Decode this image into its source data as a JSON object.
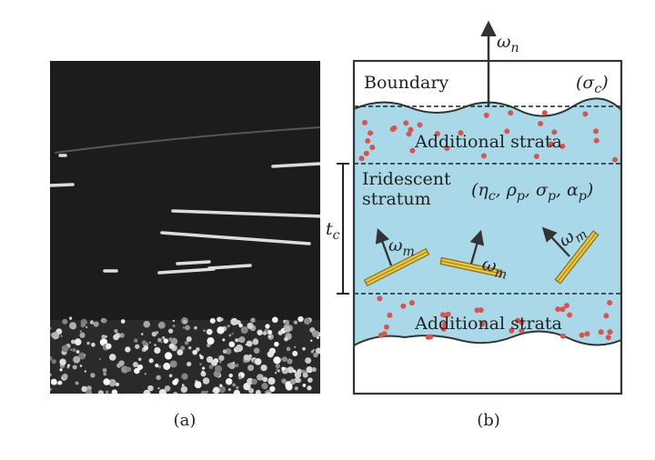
{
  "figure": {
    "panel_a": {
      "caption": "(a)"
    },
    "panel_b": {
      "caption": "(b)",
      "boundary": {
        "label": "Boundary",
        "param": [
          {
            "text": "("
          },
          {
            "text": "σ"
          },
          {
            "sub": "c"
          },
          {
            "text": ")"
          }
        ]
      },
      "outgoing_normal": [
        {
          "text": "ω"
        },
        {
          "sub": "n"
        }
      ],
      "upper_strata": "Additional strata",
      "lower_strata": "Additional strata",
      "iridescent": {
        "line1": "Iridescent",
        "line2": "stratum",
        "param": [
          {
            "text": "("
          },
          {
            "text": "η"
          },
          {
            "sub": "c"
          },
          {
            "text": ", "
          },
          {
            "text": "ρ"
          },
          {
            "sub": "p"
          },
          {
            "text": ", "
          },
          {
            "text": "σ"
          },
          {
            "sub": "p"
          },
          {
            "text": ", "
          },
          {
            "text": "α"
          },
          {
            "sub": "p"
          },
          {
            "text": ")"
          }
        ]
      },
      "thickness": [
        {
          "text": "t"
        },
        {
          "sub": "c"
        }
      ],
      "platelet_normals": [
        [
          {
            "text": "ω"
          },
          {
            "sub": "m"
          }
        ],
        [
          {
            "text": "ω"
          },
          {
            "sub": "m"
          }
        ],
        [
          {
            "text": "ω"
          },
          {
            "sub": "m"
          }
        ]
      ]
    }
  }
}
